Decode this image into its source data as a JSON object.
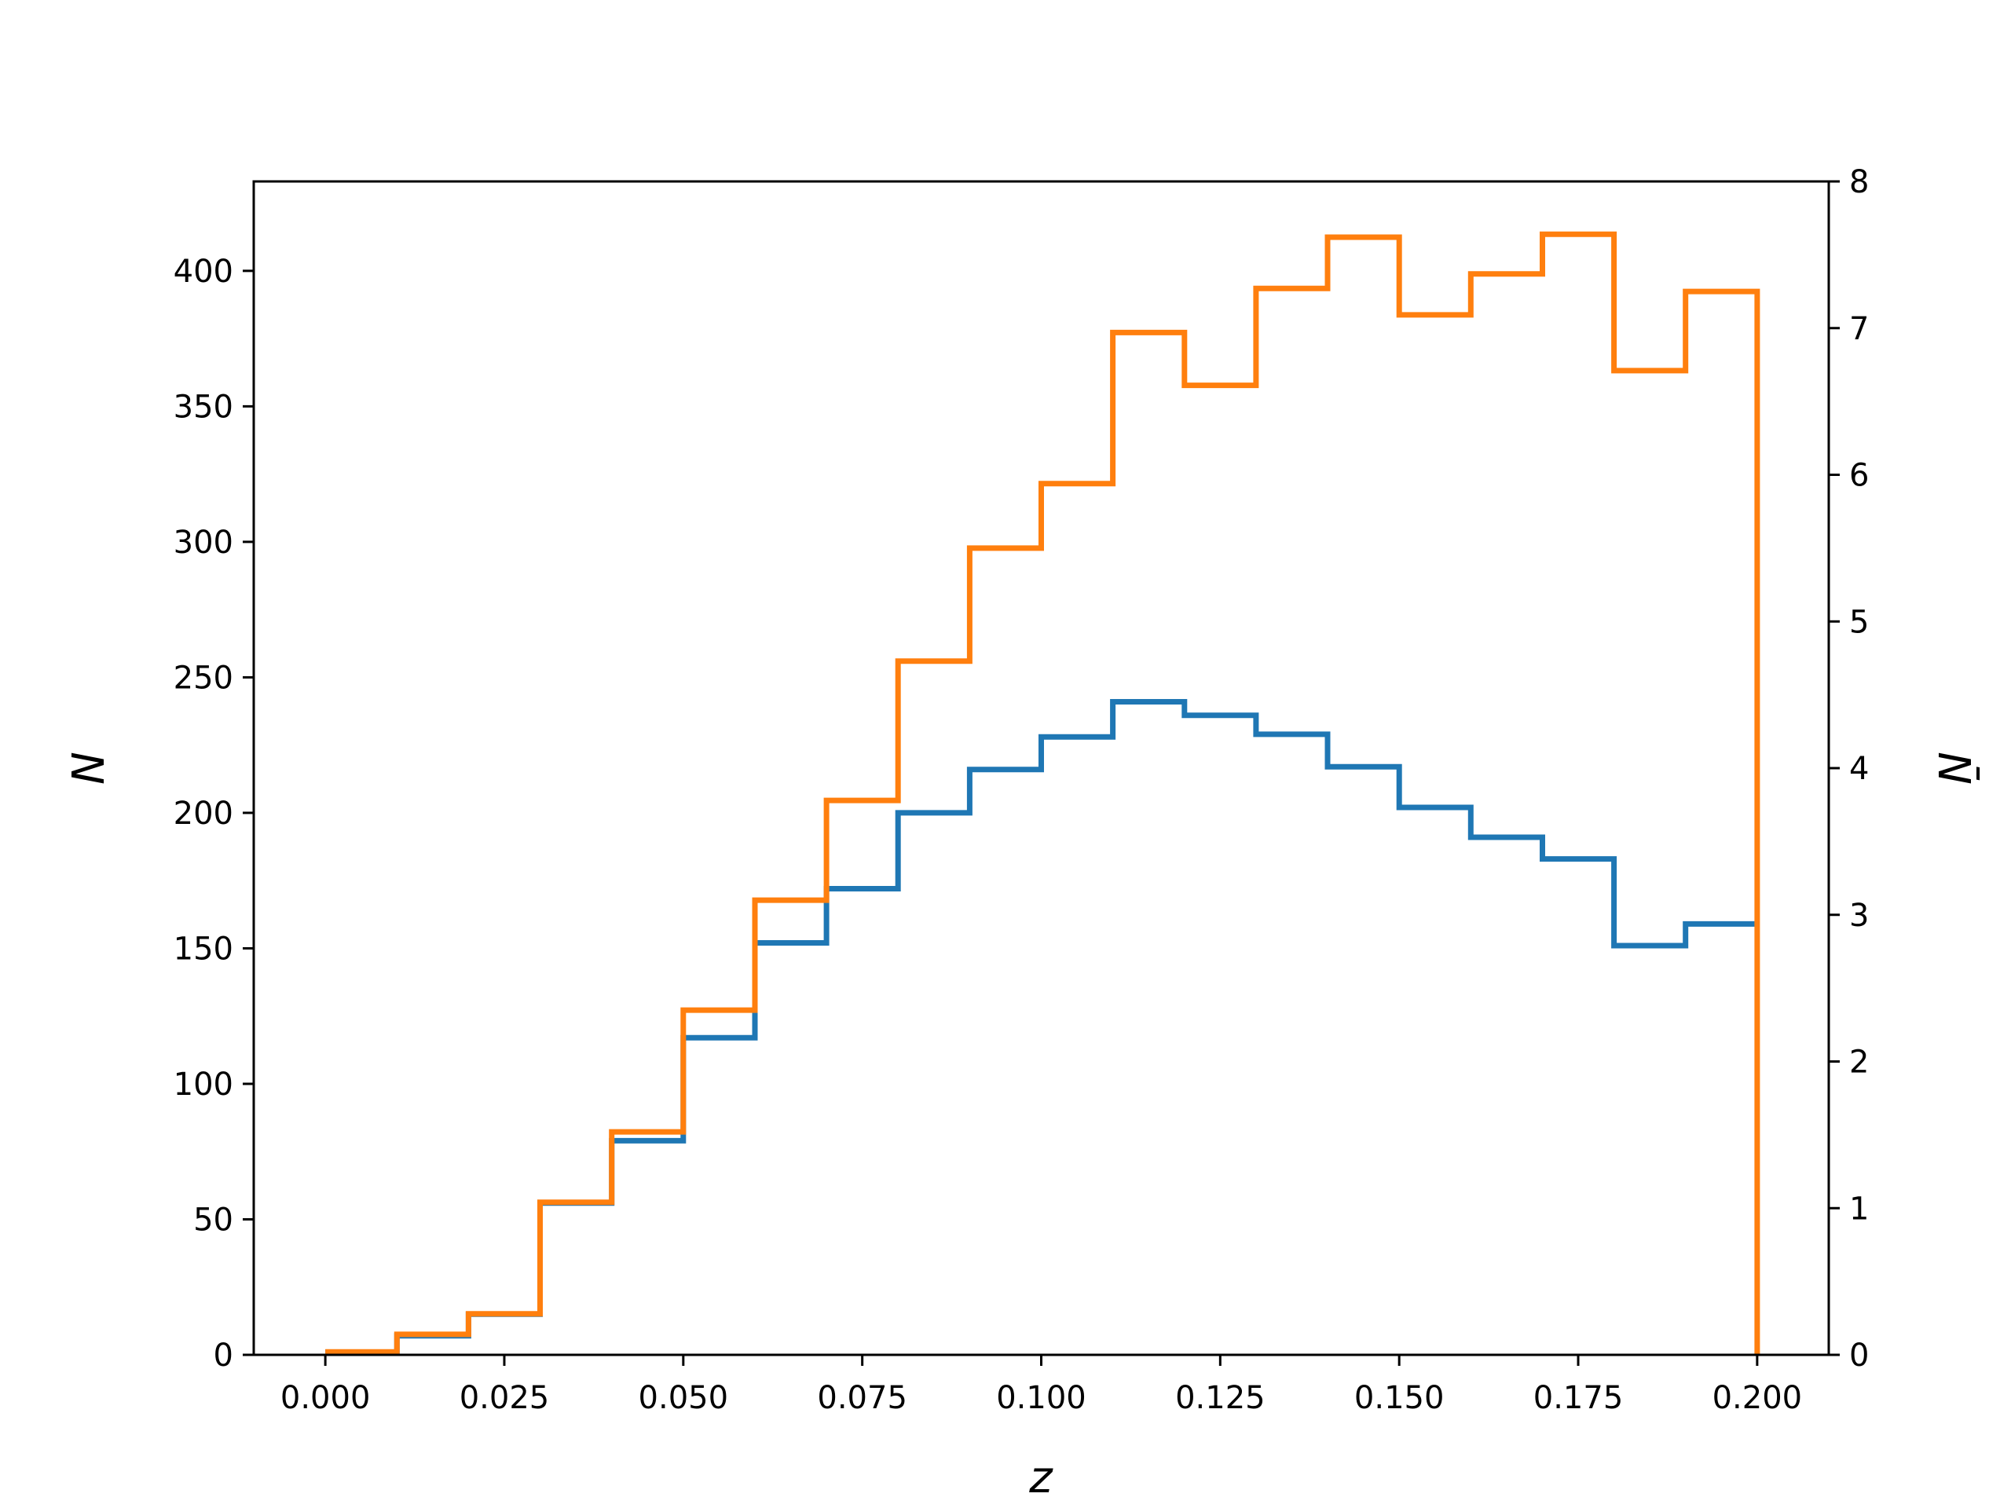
{
  "chart_data": {
    "type": "line",
    "step": "post",
    "xlabel": "z",
    "ylabel_left": "N",
    "ylabel_right": "N̄",
    "xlim": [
      -0.01,
      0.21
    ],
    "ylim_left": [
      0,
      433
    ],
    "ylim_right": [
      0,
      8
    ],
    "xticks": [
      0.0,
      0.025,
      0.05,
      0.075,
      0.1,
      0.125,
      0.15,
      0.175,
      0.2
    ],
    "xtick_labels": [
      "0.000",
      "0.025",
      "0.050",
      "0.075",
      "0.100",
      "0.125",
      "0.150",
      "0.175",
      "0.200"
    ],
    "yticks_left": [
      0,
      50,
      100,
      150,
      200,
      250,
      300,
      350,
      400
    ],
    "yticks_right": [
      0,
      1,
      2,
      3,
      4,
      5,
      6,
      7,
      8
    ],
    "bin_edges": [
      0.0,
      0.01,
      0.02,
      0.03,
      0.04,
      0.05,
      0.06,
      0.07,
      0.08,
      0.09,
      0.1,
      0.11,
      0.12,
      0.13,
      0.14,
      0.15,
      0.16,
      0.17,
      0.18,
      0.19,
      0.2
    ],
    "grid": false,
    "series": [
      {
        "axis": "left",
        "color": "#1f77b4",
        "values": [
          1,
          7,
          15,
          56,
          79,
          117,
          152,
          172,
          200,
          216,
          228,
          241,
          236,
          229,
          217,
          202,
          191,
          183,
          151,
          159
        ]
      },
      {
        "axis": "right",
        "color": "#ff7f0e",
        "drop_to_zero_at_end": true,
        "values": [
          0.02,
          0.14,
          0.28,
          1.04,
          1.52,
          2.35,
          3.1,
          3.78,
          4.73,
          5.5,
          5.94,
          6.97,
          6.61,
          7.27,
          7.62,
          7.09,
          7.37,
          7.64,
          6.71,
          7.25
        ]
      }
    ]
  }
}
